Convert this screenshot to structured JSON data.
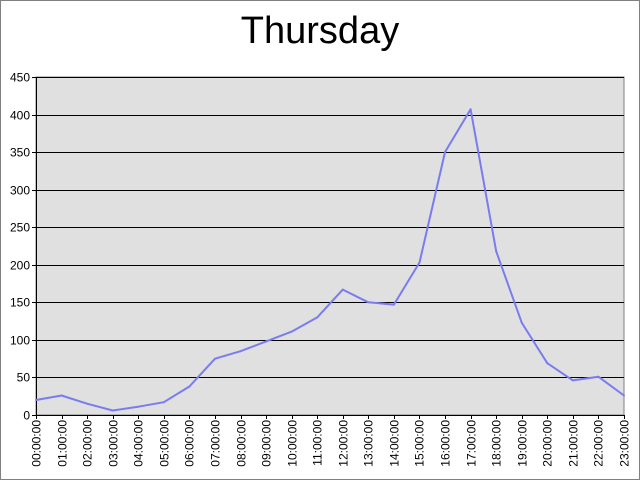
{
  "chart_data": {
    "type": "line",
    "title": "Thursday",
    "xlabel": "",
    "ylabel": "",
    "categories": [
      "00:00:00",
      "01:00:00",
      "02:00:00",
      "03:00:00",
      "04:00:00",
      "05:00:00",
      "06:00:00",
      "07:00:00",
      "08:00:00",
      "09:00:00",
      "10:00:00",
      "11:00:00",
      "12:00:00",
      "13:00:00",
      "14:00:00",
      "15:00:00",
      "16:00:00",
      "17:00:00",
      "18:00:00",
      "19:00:00",
      "20:00:00",
      "21:00:00",
      "22:00:00",
      "23:00:00"
    ],
    "series": [
      {
        "values": [
          20,
          26,
          15,
          6,
          11,
          17,
          38,
          75,
          85,
          98,
          111,
          130,
          167,
          150,
          147,
          203,
          350,
          407,
          218,
          123,
          69,
          46,
          51,
          26
        ]
      }
    ],
    "ylim": [
      0,
      450
    ],
    "yticks": [
      0,
      50,
      100,
      150,
      200,
      250,
      300,
      350,
      400,
      450
    ],
    "grid": true,
    "legend": "none",
    "colors": {
      "line": "#7b7bf0",
      "plot_bg": "#e0e0e0",
      "grid": "#000000",
      "frame": "#808080"
    }
  }
}
